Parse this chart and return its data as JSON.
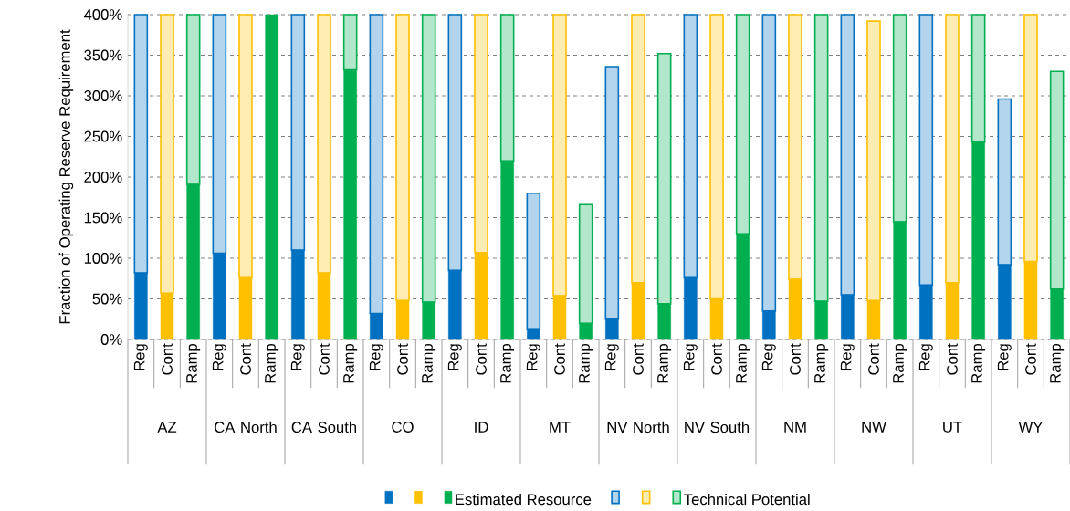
{
  "chart_data": {
    "type": "bar",
    "stacked": true,
    "ylabel": "Fraction of Operating Reserve Requirement",
    "categories": [
      "Reg",
      "Cont",
      "Ramp",
      "Reg",
      "Cont",
      "Ramp",
      "Reg",
      "Cont",
      "Ramp",
      "Reg",
      "Cont",
      "Ramp",
      "Reg",
      "Cont",
      "Ramp",
      "Reg",
      "Cont",
      "Ramp",
      "Reg",
      "Cont",
      "Ramp",
      "Reg",
      "Cont",
      "Ramp",
      "Reg",
      "Cont",
      "Ramp",
      "Reg",
      "Cont",
      "Ramp",
      "Reg",
      "Cont",
      "Ramp",
      "Reg",
      "Cont",
      "Ramp"
    ],
    "annotations": [
      "AZ",
      "CA North",
      "CA South",
      "CO",
      "ID",
      "MT",
      "NV North",
      "NV South",
      "NM",
      "NW",
      "UT",
      "WY"
    ],
    "ylim": [
      0,
      400
    ],
    "yticks": [
      {
        "value": 0,
        "label": "0%"
      },
      {
        "value": 50,
        "label": "50%"
      },
      {
        "value": 100,
        "label": "100%"
      },
      {
        "value": 150,
        "label": "150%"
      },
      {
        "value": 200,
        "label": "200%"
      },
      {
        "value": 250,
        "label": "250%"
      },
      {
        "value": 300,
        "label": "300%"
      },
      {
        "value": 350,
        "label": "350%"
      },
      {
        "value": 400,
        "label": "400%"
      }
    ],
    "grid": "y",
    "legend": "bottom",
    "series": [
      {
        "color": "#0070c0",
        "values": [
          82,
          null,
          null,
          106,
          null,
          null,
          110,
          null,
          null,
          32,
          null,
          null,
          85,
          null,
          null,
          12,
          null,
          null,
          25,
          null,
          null,
          76,
          null,
          null,
          35,
          null,
          null,
          55,
          null,
          null,
          67,
          null,
          null,
          92,
          null,
          null
        ]
      },
      {
        "color": "#ffc000",
        "values": [
          null,
          57,
          null,
          null,
          76,
          null,
          null,
          82,
          null,
          null,
          48,
          null,
          null,
          107,
          null,
          null,
          54,
          null,
          null,
          70,
          null,
          null,
          50,
          null,
          null,
          74,
          null,
          null,
          48,
          null,
          null,
          70,
          null,
          null,
          96,
          null
        ]
      },
      {
        "name": "Estimated Resource",
        "color": "#00b050",
        "values": [
          null,
          null,
          191,
          null,
          null,
          400,
          null,
          null,
          332,
          null,
          null,
          46,
          null,
          null,
          220,
          null,
          null,
          20,
          null,
          null,
          44,
          null,
          null,
          130,
          null,
          null,
          47,
          null,
          null,
          145,
          null,
          null,
          243,
          null,
          null,
          62
        ]
      },
      {
        "color": "#0070c0",
        "values": [
          318,
          null,
          null,
          294,
          null,
          null,
          290,
          null,
          null,
          368,
          null,
          null,
          315,
          null,
          null,
          168,
          null,
          null,
          311,
          null,
          null,
          324,
          null,
          null,
          365,
          null,
          null,
          345,
          null,
          null,
          333,
          null,
          null,
          204,
          null,
          null
        ]
      },
      {
        "color": "#ffc000",
        "values": [
          null,
          343,
          null,
          null,
          324,
          null,
          null,
          318,
          null,
          null,
          352,
          null,
          null,
          293,
          null,
          null,
          346,
          null,
          null,
          330,
          null,
          null,
          350,
          null,
          null,
          326,
          null,
          null,
          344,
          null,
          null,
          330,
          null,
          null,
          304,
          null
        ]
      },
      {
        "name": "Technical Potential",
        "color": "#00b050",
        "values": [
          null,
          null,
          209,
          null,
          null,
          null,
          null,
          null,
          68,
          null,
          null,
          354,
          null,
          null,
          180,
          null,
          null,
          146,
          null,
          null,
          308,
          null,
          null,
          270,
          null,
          null,
          353,
          null,
          null,
          255,
          null,
          null,
          157,
          null,
          null,
          268
        ]
      }
    ]
  }
}
